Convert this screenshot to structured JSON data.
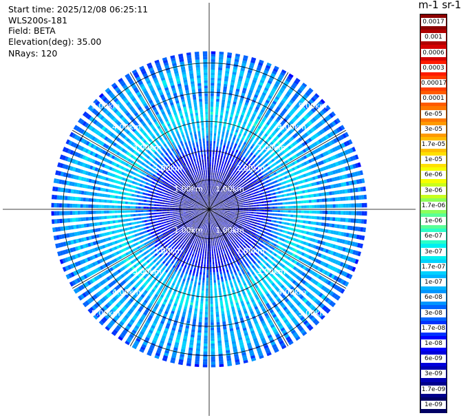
{
  "header": {
    "start_time": "Start time: 2025/12/08 06:25:11",
    "instrument": "WLS200s-181",
    "field": "Field: BETA",
    "elevation": "Elevation(deg): 35.00",
    "nrays": "NRays: 120"
  },
  "colorbar": {
    "title": "m-1 sr-1",
    "labels": [
      "0.0017",
      "0.001",
      "0.0006",
      "0.0003",
      "0.00017",
      "0.0001",
      "6e-05",
      "3e-05",
      "1.7e-05",
      "1e-05",
      "6e-06",
      "3e-06",
      "1.7e-06",
      "1e-06",
      "6e-07",
      "3e-07",
      "1.7e-07",
      "1e-07",
      "6e-08",
      "3e-08",
      "1.7e-08",
      "1e-08",
      "6e-09",
      "3e-09",
      "1.7e-09",
      "1e-09"
    ],
    "colors": [
      "#8b0000",
      "#b00000",
      "#d40000",
      "#ff1a00",
      "#ff3c00",
      "#ff5a00",
      "#ff7800",
      "#ff9a00",
      "#ffbe00",
      "#ffe000",
      "#f6ff00",
      "#c8ff1e",
      "#8cff5a",
      "#5aff96",
      "#2affc8",
      "#00f0f0",
      "#00d2ff",
      "#00b4ff",
      "#0096ff",
      "#0064ff",
      "#0032ff",
      "#0000ff",
      "#0000dc",
      "#0000b4",
      "#00008c",
      "#000064"
    ]
  },
  "chart_data": {
    "type": "heatmap",
    "projection": "polar PPI scan",
    "rays": 120,
    "elevation_deg": 35.0,
    "range_rings_km": [
      1.0,
      2.0,
      3.0,
      4.0,
      5.0
    ],
    "ring_labels": [
      "1.00km",
      "2.00km",
      "3.00km",
      "4.00km",
      "5.00km"
    ],
    "spokes_deg": [
      0,
      30,
      60,
      90,
      120,
      150,
      180,
      210,
      240,
      270,
      300,
      330
    ],
    "max_range_km": 5.4,
    "radial_beta_profile": [
      {
        "range_km": 0.0,
        "beta": 2e-09
      },
      {
        "range_km": 1.0,
        "beta": 3e-09
      },
      {
        "range_km": 2.0,
        "beta": 1.7e-08
      },
      {
        "range_km": 2.7,
        "beta": 1.7e-07
      },
      {
        "range_km": 3.3,
        "beta": 3e-07
      },
      {
        "range_km": 4.0,
        "beta": 6e-08
      },
      {
        "range_km": 4.6,
        "beta": 1.7e-07
      },
      {
        "range_km": 5.4,
        "beta": 3e-08
      }
    ]
  }
}
